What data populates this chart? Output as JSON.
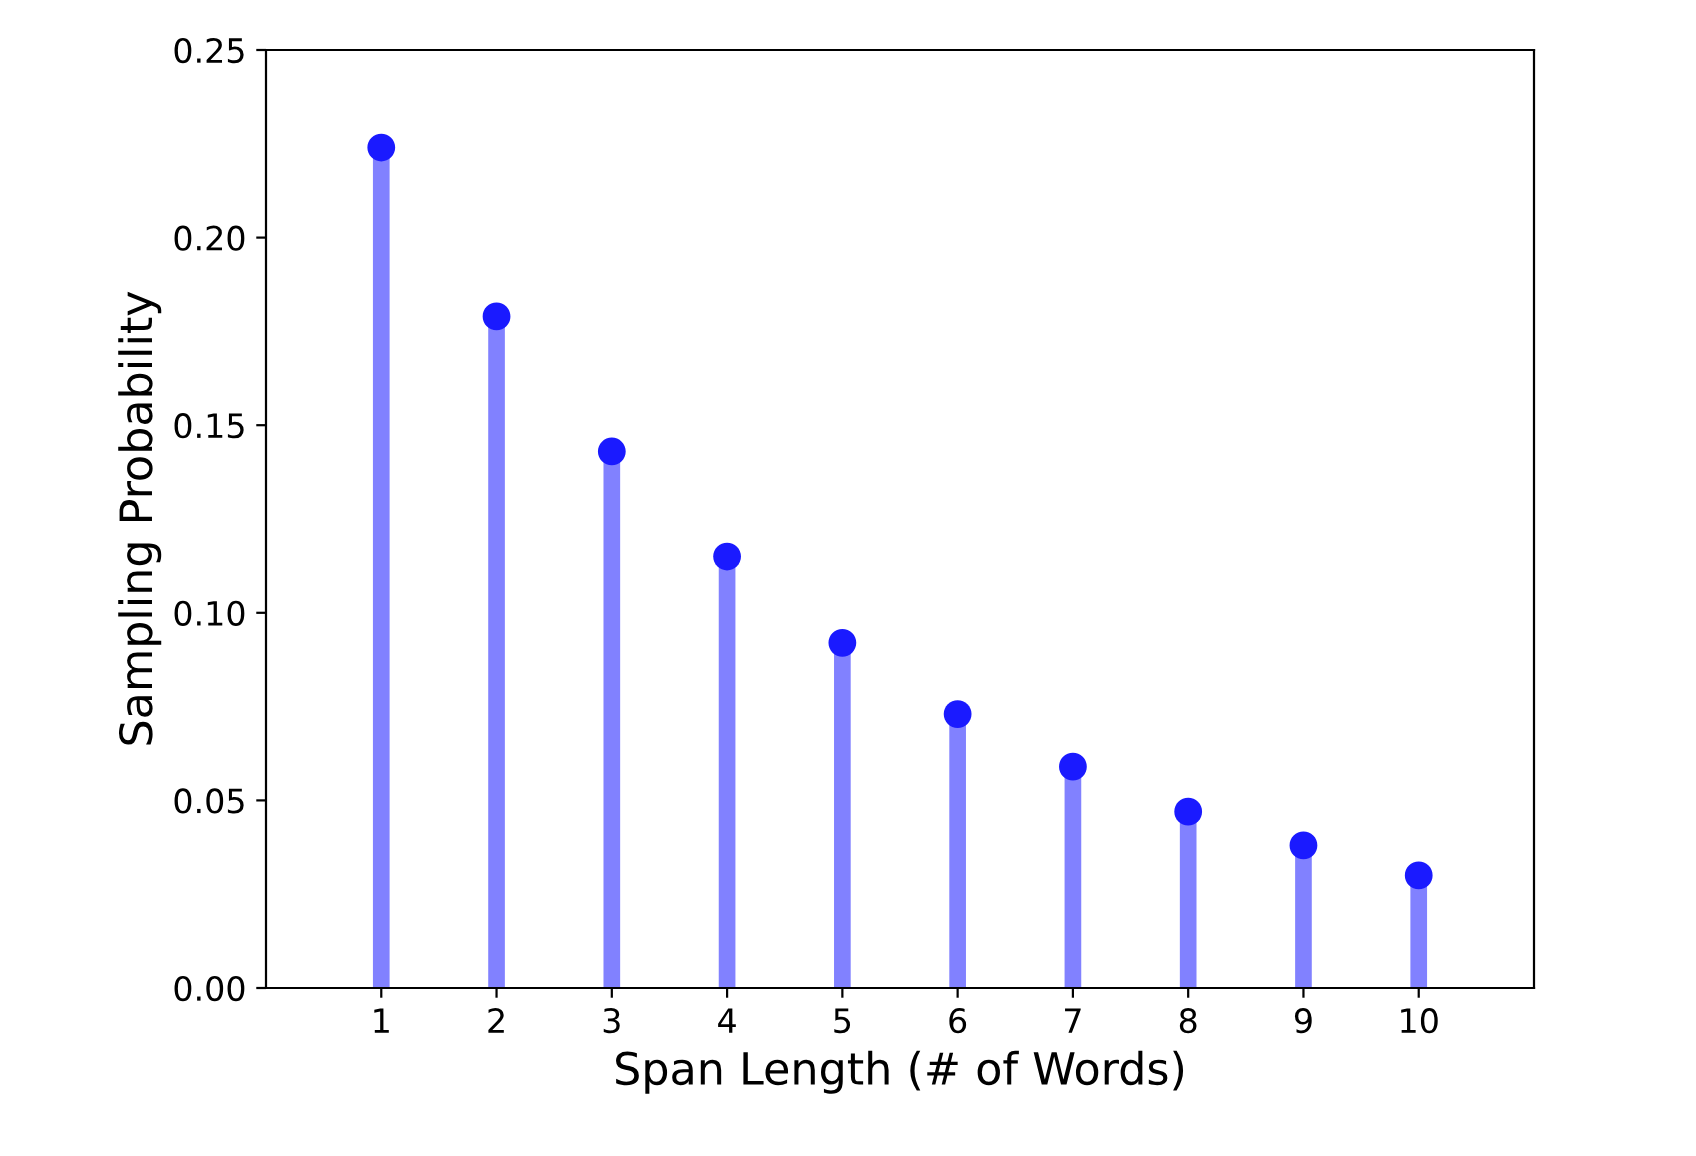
{
  "chart_data": {
    "type": "lollipop",
    "xlabel": "Span Length (# of Words)",
    "ylabel": "Sampling Probability",
    "x": [
      1,
      2,
      3,
      4,
      5,
      6,
      7,
      8,
      9,
      10
    ],
    "values": [
      0.224,
      0.179,
      0.143,
      0.115,
      0.092,
      0.073,
      0.059,
      0.047,
      0.038,
      0.03
    ],
    "color": "#1a1aff",
    "marker": "circle",
    "xlim": [
      0,
      11
    ],
    "xticks": [
      1,
      2,
      3,
      4,
      5,
      6,
      7,
      8,
      9,
      10
    ],
    "ylim": [
      0,
      0.25
    ],
    "yticks": [
      {
        "value": 0,
        "label": "0.00"
      },
      {
        "value": 0.05,
        "label": "0.05"
      },
      {
        "value": 0.1,
        "label": "0.10"
      },
      {
        "value": 0.15,
        "label": "0.15"
      },
      {
        "value": 0.2,
        "label": "0.20"
      },
      {
        "value": 0.25,
        "label": "0.25"
      }
    ]
  }
}
